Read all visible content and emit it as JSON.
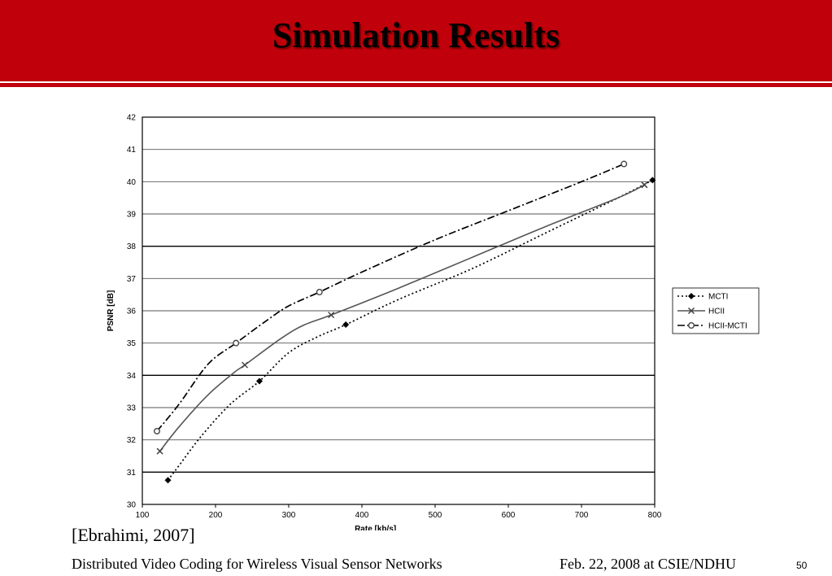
{
  "slide": {
    "title": "Simulation Results",
    "citation": "[Ebrahimi, 2007]",
    "footer_left": "Distributed Video Coding for Wireless Visual Sensor Networks",
    "footer_right": "Feb. 22, 2008 at CSIE/NDHU",
    "page_number": "50",
    "accent_color": "#c0000b"
  },
  "chart_data": {
    "type": "line",
    "title": "",
    "xlabel": "Rate [kb/s]",
    "ylabel": "PSNR [dB]",
    "xlim": [
      100,
      800
    ],
    "ylim": [
      30,
      42
    ],
    "x_ticks": [
      "100",
      "200",
      "300",
      "400",
      "500",
      "600",
      "700",
      "800"
    ],
    "y_ticks": [
      "30",
      "31",
      "32",
      "33",
      "34",
      "35",
      "36",
      "37",
      "38",
      "39",
      "40",
      "41",
      "42"
    ],
    "grid": "horizontal",
    "legend_position": "right",
    "series": [
      {
        "name": "MCTI",
        "marker": "diamond",
        "line": "dotted",
        "points": [
          [
            135,
            30.75
          ],
          [
            260,
            33.82
          ],
          [
            378,
            35.57
          ],
          [
            797,
            40.05
          ]
        ],
        "curve": [
          [
            135,
            30.75
          ],
          [
            150,
            31.2
          ],
          [
            180,
            32.1
          ],
          [
            220,
            33.1
          ],
          [
            260,
            33.82
          ],
          [
            300,
            34.7
          ],
          [
            340,
            35.2
          ],
          [
            378,
            35.57
          ],
          [
            450,
            36.35
          ],
          [
            550,
            37.3
          ],
          [
            650,
            38.4
          ],
          [
            750,
            39.5
          ],
          [
            797,
            40.05
          ]
        ]
      },
      {
        "name": "HCII",
        "marker": "x",
        "line": "solid",
        "points": [
          [
            124,
            31.65
          ],
          [
            240,
            34.32
          ],
          [
            358,
            35.87
          ],
          [
            786,
            39.9
          ]
        ],
        "curve": [
          [
            124,
            31.65
          ],
          [
            150,
            32.4
          ],
          [
            190,
            33.4
          ],
          [
            225,
            34.08
          ],
          [
            240,
            34.32
          ],
          [
            290,
            35.15
          ],
          [
            320,
            35.55
          ],
          [
            358,
            35.87
          ],
          [
            450,
            36.7
          ],
          [
            550,
            37.65
          ],
          [
            650,
            38.6
          ],
          [
            750,
            39.5
          ],
          [
            786,
            39.9
          ]
        ]
      },
      {
        "name": "HCII-MCTI",
        "marker": "circle",
        "line": "dash-dot",
        "points": [
          [
            120,
            32.27
          ],
          [
            228,
            35.0
          ],
          [
            342,
            36.58
          ],
          [
            758,
            40.55
          ]
        ],
        "curve": [
          [
            120,
            32.27
          ],
          [
            150,
            33.1
          ],
          [
            190,
            34.35
          ],
          [
            228,
            35.0
          ],
          [
            270,
            35.7
          ],
          [
            300,
            36.15
          ],
          [
            342,
            36.58
          ],
          [
            400,
            37.2
          ],
          [
            500,
            38.2
          ],
          [
            600,
            39.1
          ],
          [
            700,
            40.0
          ],
          [
            758,
            40.55
          ]
        ]
      }
    ]
  }
}
